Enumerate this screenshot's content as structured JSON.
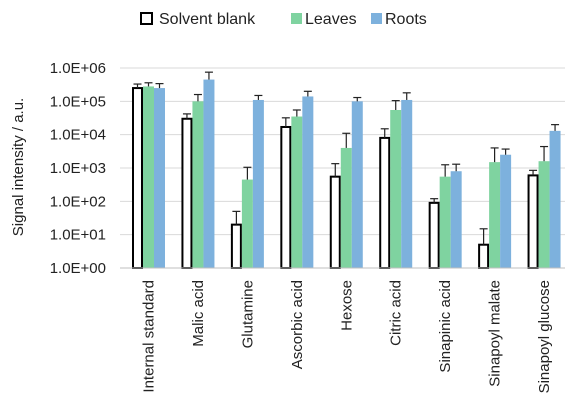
{
  "chart_data": {
    "type": "bar",
    "title": "",
    "xlabel": "",
    "ylabel": "Signal intensity / a.u.",
    "yscale": "log",
    "ylim": [
      1,
      1000000
    ],
    "yticks": [
      1,
      10,
      100,
      1000,
      10000,
      100000,
      1000000
    ],
    "ytick_labels": [
      "1.0E+00",
      "1.0E+01",
      "1.0E+02",
      "1.0E+03",
      "1.0E+04",
      "1.0E+05",
      "1.0E+06"
    ],
    "grid": "horizontal",
    "legend_position": "top",
    "error_bars": true,
    "categories": [
      "Internal standard",
      "Malic acid",
      "Glutamine",
      "Ascorbic acid",
      "Hexose",
      "Citric acid",
      "Sinapinic acid",
      "Sinapoyl malate",
      "Sinapoyl glucose"
    ],
    "series": [
      {
        "name": "Solvent blank",
        "color": "#ffffff",
        "edge_color": "#000000",
        "values": [
          250000,
          30000,
          20,
          17000,
          550,
          8000,
          90,
          5,
          600
        ],
        "errors": [
          80000,
          12000,
          30,
          15000,
          800,
          7000,
          30,
          10,
          250
        ]
      },
      {
        "name": "Leaves",
        "color": "#7fd3a0",
        "edge_color": "#7fd3a0",
        "values": [
          280000,
          100000,
          450,
          35000,
          4000,
          55000,
          550,
          1500,
          1600
        ],
        "errors": [
          80000,
          60000,
          600,
          20000,
          7000,
          50000,
          700,
          2500,
          2800
        ]
      },
      {
        "name": "Roots",
        "color": "#7db1dd",
        "edge_color": "#7db1dd",
        "values": [
          250000,
          450000,
          110000,
          140000,
          100000,
          110000,
          800,
          2500,
          13000
        ],
        "errors": [
          90000,
          300000,
          40000,
          60000,
          30000,
          70000,
          500,
          1200,
          7000
        ]
      }
    ]
  }
}
